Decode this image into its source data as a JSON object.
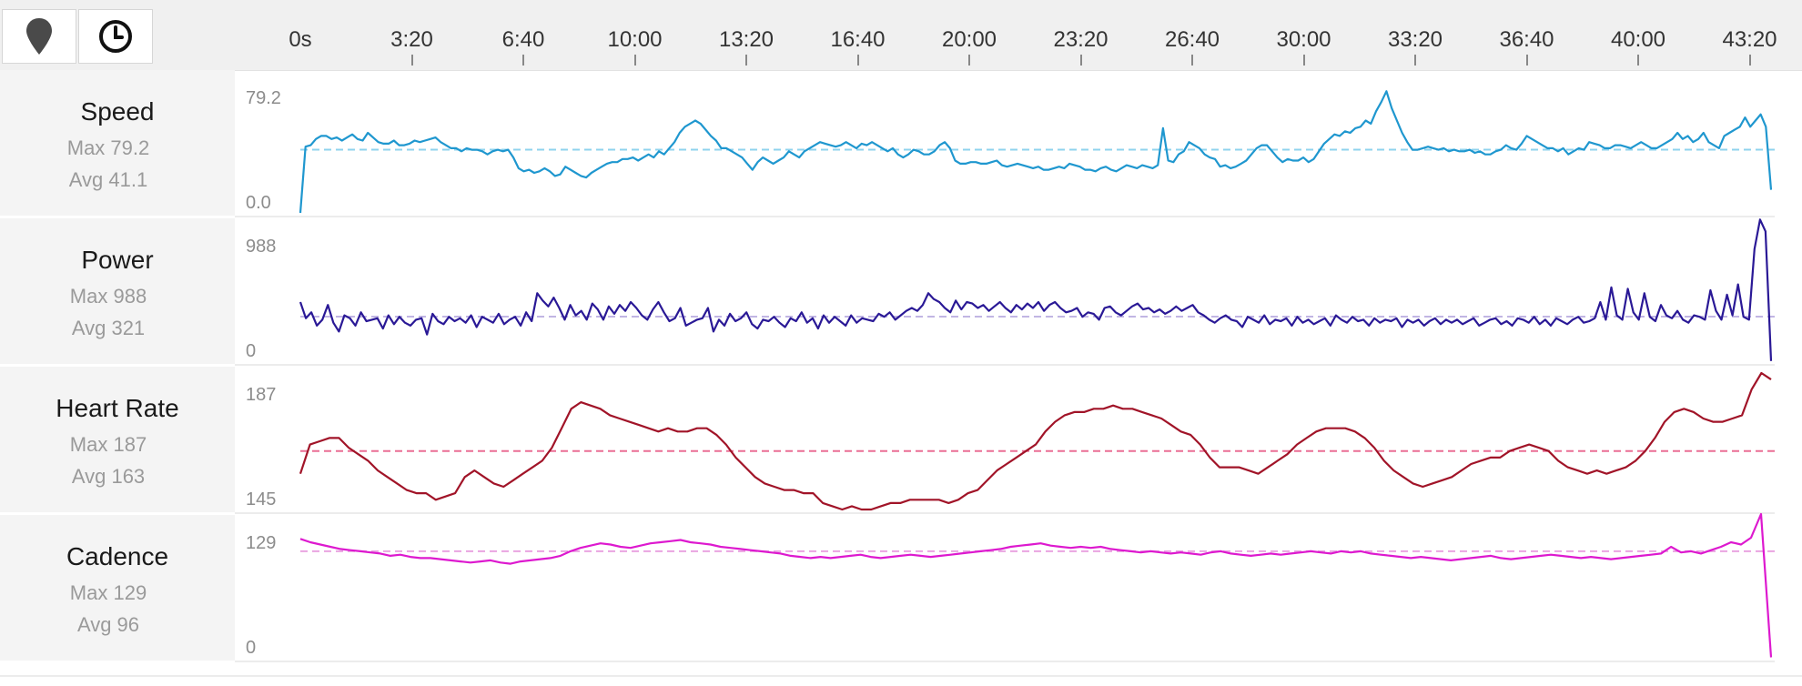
{
  "toolbar": {
    "map_button_icon": "map-pin-icon",
    "time_button_icon": "clock-icon"
  },
  "time_axis": {
    "ticks": [
      "0s",
      "3:20",
      "6:40",
      "10:00",
      "13:20",
      "16:40",
      "20:00",
      "23:20",
      "26:40",
      "30:00",
      "33:20",
      "36:40",
      "40:00",
      "43:20"
    ]
  },
  "metrics": [
    {
      "key": "speed",
      "name": "Speed",
      "max_label": "Max 79.2",
      "avg_label": "Avg 41.1",
      "axis_top": "79.2",
      "axis_bottom": "0.0",
      "color": "#1f97cf",
      "avg_color": "#8fd3ee",
      "ylim": [
        0,
        79.2
      ],
      "avg": 41.1,
      "values": [
        0,
        43,
        44,
        48,
        50,
        50,
        48,
        49,
        47,
        49,
        51,
        48,
        47,
        52,
        49,
        46,
        45,
        45,
        47,
        44,
        44,
        45,
        47,
        46,
        47,
        48,
        49,
        46,
        44,
        42,
        42,
        40,
        42,
        41,
        41,
        40,
        38,
        40,
        41,
        40,
        41,
        36,
        29,
        27,
        28,
        26,
        27,
        29,
        27,
        24,
        25,
        30,
        28,
        26,
        24,
        23,
        26,
        28,
        30,
        32,
        33,
        33,
        35,
        35,
        36,
        34,
        36,
        38,
        36,
        40,
        38,
        42,
        46,
        52,
        56,
        58,
        60,
        58,
        54,
        50,
        47,
        42,
        42,
        40,
        38,
        36,
        32,
        28,
        33,
        36,
        34,
        32,
        34,
        36,
        40,
        38,
        36,
        40,
        42,
        44,
        46,
        45,
        44,
        43,
        44,
        46,
        44,
        42,
        45,
        44,
        46,
        44,
        42,
        40,
        42,
        38,
        36,
        38,
        41,
        40,
        38,
        38,
        40,
        44,
        46,
        42,
        34,
        32,
        32,
        33,
        33,
        32,
        32,
        33,
        34,
        31,
        30,
        31,
        32,
        31,
        30,
        29,
        30,
        28,
        28,
        29,
        30,
        29,
        32,
        31,
        30,
        28,
        28,
        27,
        29,
        30,
        28,
        27,
        29,
        31,
        30,
        29,
        31,
        30,
        29,
        31,
        55,
        34,
        33,
        38,
        40,
        46,
        44,
        42,
        38,
        36,
        35,
        30,
        31,
        29,
        30,
        32,
        34,
        38,
        42,
        44,
        44,
        40,
        36,
        33,
        35,
        34,
        34,
        36,
        33,
        35,
        40,
        45,
        48,
        51,
        50,
        53,
        52,
        55,
        56,
        60,
        58,
        66,
        72,
        79,
        68,
        60,
        52,
        46,
        41,
        41,
        42,
        43,
        42,
        41,
        42,
        40,
        41,
        40,
        40,
        41,
        39,
        40,
        38,
        38,
        40,
        41,
        44,
        42,
        41,
        45,
        50,
        48,
        46,
        44,
        42,
        42,
        40,
        42,
        38,
        40,
        42,
        41,
        46,
        45,
        44,
        42,
        42,
        44,
        44,
        43,
        42,
        44,
        46,
        44,
        42,
        42,
        44,
        46,
        48,
        52,
        48,
        50,
        46,
        48,
        52,
        46,
        44,
        42,
        50,
        52,
        54,
        56,
        62,
        56,
        60,
        64,
        56,
        15
      ]
    },
    {
      "key": "power",
      "name": "Power",
      "max_label": "Max 988",
      "avg_label": "Avg 321",
      "axis_top": "988",
      "axis_bottom": "0",
      "color": "#2a1996",
      "avg_color": "#c1b6e3",
      "ylim": [
        0,
        988
      ],
      "avg": 321,
      "values": [
        420,
        310,
        350,
        260,
        300,
        400,
        280,
        220,
        330,
        310,
        260,
        350,
        290,
        300,
        310,
        240,
        330,
        270,
        320,
        280,
        260,
        300,
        310,
        200,
        340,
        290,
        270,
        320,
        290,
        310,
        280,
        330,
        250,
        320,
        300,
        280,
        340,
        270,
        300,
        320,
        260,
        350,
        290,
        480,
        430,
        390,
        450,
        380,
        300,
        400,
        330,
        360,
        300,
        410,
        370,
        300,
        390,
        340,
        400,
        360,
        420,
        380,
        330,
        300,
        370,
        420,
        350,
        290,
        310,
        380,
        260,
        280,
        300,
        310,
        380,
        220,
        300,
        260,
        340,
        290,
        310,
        350,
        270,
        240,
        300,
        290,
        320,
        280,
        250,
        310,
        290,
        350,
        280,
        310,
        240,
        330,
        280,
        320,
        290,
        260,
        330,
        280,
        310,
        300,
        290,
        340,
        320,
        350,
        300,
        330,
        360,
        380,
        360,
        400,
        480,
        440,
        420,
        380,
        350,
        430,
        370,
        420,
        410,
        380,
        400,
        360,
        390,
        420,
        380,
        350,
        400,
        370,
        410,
        380,
        420,
        360,
        400,
        420,
        380,
        350,
        360,
        380,
        320,
        350,
        340,
        300,
        380,
        390,
        350,
        330,
        360,
        390,
        410,
        370,
        380,
        350,
        370,
        340,
        360,
        390,
        360,
        380,
        400,
        350,
        330,
        300,
        280,
        310,
        330,
        300,
        290,
        250,
        320,
        300,
        280,
        330,
        270,
        300,
        290,
        310,
        260,
        320,
        280,
        300,
        270,
        290,
        310,
        260,
        330,
        300,
        280,
        320,
        290,
        300,
        260,
        310,
        280,
        300,
        290,
        310,
        250,
        300,
        280,
        300,
        260,
        290,
        310,
        270,
        300,
        280,
        300,
        270,
        290,
        310,
        260,
        280,
        300,
        310,
        270,
        290,
        260,
        310,
        300,
        280,
        320,
        270,
        300,
        260,
        310,
        290,
        270,
        300,
        320,
        280,
        290,
        310,
        420,
        300,
        520,
        330,
        300,
        510,
        350,
        300,
        480,
        320,
        290,
        400,
        330,
        310,
        360,
        300,
        280,
        330,
        320,
        300,
        500,
        360,
        300,
        470,
        330,
        540,
        320,
        300,
        780,
        980,
        900,
        20
      ]
    },
    {
      "key": "heart_rate",
      "name": "Heart Rate",
      "max_label": "Max 187",
      "avg_label": "Avg 163",
      "axis_top": "187",
      "axis_bottom": "145",
      "color": "#a11428",
      "avg_color": "#ea6f95",
      "ylim": [
        145,
        187
      ],
      "avg": 163,
      "values": [
        156,
        165,
        166,
        167,
        167,
        164,
        162,
        160,
        157,
        155,
        153,
        151,
        150,
        150,
        148,
        149,
        150,
        155,
        157,
        155,
        153,
        152,
        154,
        156,
        158,
        160,
        164,
        170,
        176,
        178,
        177,
        176,
        174,
        173,
        172,
        171,
        170,
        169,
        170,
        169,
        169,
        170,
        170,
        168,
        165,
        161,
        158,
        155,
        153,
        152,
        151,
        151,
        150,
        150,
        147,
        146,
        145,
        146,
        145,
        145,
        146,
        147,
        147,
        148,
        148,
        148,
        148,
        147,
        148,
        150,
        151,
        154,
        157,
        159,
        161,
        163,
        165,
        169,
        172,
        174,
        175,
        175,
        176,
        176,
        177,
        176,
        176,
        175,
        174,
        173,
        171,
        169,
        168,
        165,
        161,
        158,
        158,
        158,
        157,
        156,
        158,
        160,
        162,
        165,
        167,
        169,
        170,
        170,
        170,
        169,
        167,
        164,
        160,
        157,
        155,
        153,
        152,
        153,
        154,
        155,
        157,
        159,
        160,
        161,
        161,
        163,
        164,
        165,
        164,
        163,
        160,
        158,
        157,
        156,
        157,
        156,
        157,
        158,
        160,
        163,
        167,
        172,
        175,
        176,
        175,
        173,
        172,
        172,
        173,
        174,
        182,
        187,
        185
      ]
    },
    {
      "key": "cadence",
      "name": "Cadence",
      "max_label": "Max 129",
      "avg_label": "Avg 96",
      "axis_top": "129",
      "axis_bottom": "0",
      "color": "#dd19cf",
      "avg_color": "#e9a4e1",
      "ylim": [
        0,
        129
      ],
      "avg": 96,
      "values": [
        107,
        104,
        102,
        100,
        98,
        97,
        96,
        95,
        94,
        92,
        93,
        91,
        90,
        90,
        89,
        88,
        87,
        86,
        87,
        88,
        86,
        85,
        87,
        88,
        89,
        90,
        92,
        96,
        99,
        101,
        103,
        102,
        100,
        99,
        101,
        103,
        104,
        105,
        106,
        104,
        103,
        102,
        100,
        99,
        98,
        97,
        96,
        95,
        94,
        92,
        91,
        90,
        91,
        90,
        91,
        92,
        93,
        91,
        90,
        91,
        92,
        93,
        92,
        91,
        92,
        93,
        94,
        95,
        96,
        97,
        98,
        100,
        101,
        102,
        103,
        101,
        100,
        99,
        100,
        99,
        100,
        98,
        97,
        96,
        95,
        96,
        95,
        94,
        95,
        94,
        93,
        95,
        96,
        94,
        93,
        92,
        93,
        94,
        93,
        94,
        95,
        96,
        95,
        94,
        96,
        95,
        96,
        94,
        93,
        92,
        91,
        90,
        91,
        90,
        89,
        88,
        89,
        90,
        91,
        92,
        90,
        89,
        90,
        91,
        92,
        93,
        92,
        91,
        90,
        91,
        90,
        89,
        90,
        91,
        92,
        93,
        94,
        100,
        95,
        96,
        94,
        97,
        100,
        104,
        102,
        108,
        129,
        2
      ]
    }
  ]
}
